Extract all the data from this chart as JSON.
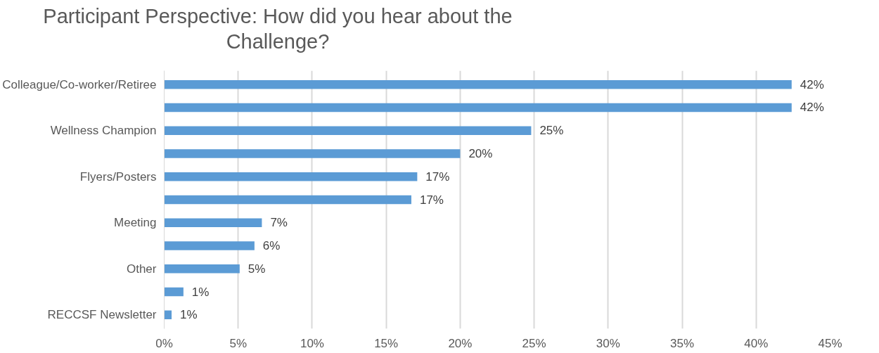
{
  "chart_data": {
    "type": "bar",
    "orientation": "horizontal",
    "title": "Participant Perspective: How did you hear about the Challenge?",
    "categories": [
      "Colleague/Co-worker/Retiree",
      null,
      "Wellness Champion",
      null,
      "Flyers/Posters",
      null,
      "Meeting",
      null,
      "Other",
      null,
      "RECCSF Newsletter"
    ],
    "values": [
      42.4,
      42.4,
      24.8,
      20.0,
      17.1,
      16.7,
      6.6,
      6.1,
      5.1,
      1.3,
      0.5
    ],
    "value_labels": [
      "42%",
      "42%",
      "25%",
      "20%",
      "17%",
      "17%",
      "7%",
      "6%",
      "5%",
      "1%",
      "1%"
    ],
    "color": "#5b9bd5",
    "xlim": [
      0,
      45
    ],
    "xticks": [
      {
        "value": 0,
        "label": "0%"
      },
      {
        "value": 5,
        "label": "5%"
      },
      {
        "value": 10,
        "label": "10%"
      },
      {
        "value": 15,
        "label": "15%"
      },
      {
        "value": 20,
        "label": "20%"
      },
      {
        "value": 25,
        "label": "25%"
      },
      {
        "value": 30,
        "label": "30%"
      },
      {
        "value": 35,
        "label": "35%"
      },
      {
        "value": 40,
        "label": "40%"
      },
      {
        "value": 45,
        "label": "45%"
      }
    ],
    "grid": "x"
  }
}
